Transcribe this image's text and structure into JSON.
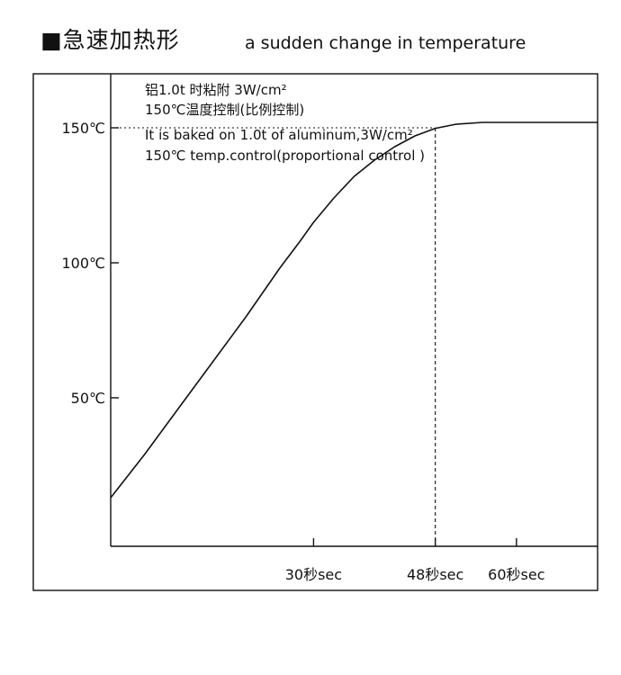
{
  "header": {
    "title_zh": "■急速加热形",
    "title_en": "a sudden change in temperature"
  },
  "notes": [
    "铝1.0t 时粘附 3W/cm²",
    "150℃温度控制(比例控制)",
    "It is baked on 1.0t of aluminum,3W/cm²",
    "150℃ temp.control(proportional control )"
  ],
  "chart_data": {
    "type": "line",
    "title": "",
    "xlabel": "",
    "ylabel": "",
    "x_ticks": [
      {
        "value": 30,
        "label": "30秒sec"
      },
      {
        "value": 48,
        "label": "48秒sec"
      },
      {
        "value": 60,
        "label": "60秒sec"
      }
    ],
    "y_ticks": [
      {
        "value": 50,
        "label": "50℃"
      },
      {
        "value": 100,
        "label": "100℃"
      },
      {
        "value": 150,
        "label": "150℃"
      }
    ],
    "xlim": [
      0,
      72
    ],
    "ylim": [
      -5,
      170
    ],
    "series": [
      {
        "name": "",
        "x": [
          0,
          5,
          10,
          15,
          20,
          25,
          28,
          30,
          33,
          36,
          39,
          42,
          45,
          48,
          51,
          55,
          60,
          65,
          72
        ],
        "y": [
          13,
          29,
          46,
          63,
          80,
          98,
          108,
          115,
          124,
          132,
          138,
          143,
          147,
          149.8,
          151.3,
          152,
          152,
          152,
          152
        ]
      }
    ],
    "reference_lines": [
      {
        "axis": "y",
        "value": 150,
        "style": "dotted"
      },
      {
        "axis": "x",
        "value": 48,
        "style": "dashed"
      }
    ],
    "grid": false,
    "colors": {
      "line": "#111111",
      "background": "#ffffff"
    }
  }
}
